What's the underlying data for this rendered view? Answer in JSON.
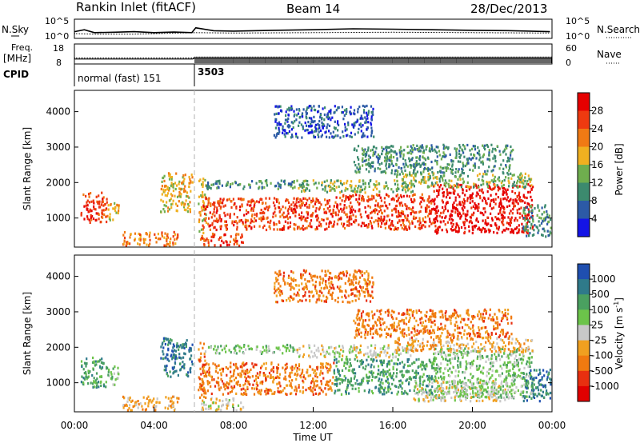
{
  "header": {
    "station": "Rankin Inlet (fitACF)",
    "beam": "Beam 14",
    "date": "28/Dec/2013"
  },
  "colors": {
    "power_scale": [
      "#1414e6",
      "#2c5aa6",
      "#3c8a6e",
      "#6fae4e",
      "#f0b020",
      "#f07a14",
      "#ee3a10",
      "#e60000"
    ],
    "velocity_scale": [
      "#1f4fb0",
      "#2f7a8a",
      "#4aa060",
      "#6cc44a",
      "#c8c8c8",
      "#f0a020",
      "#f07a10",
      "#e83010",
      "#e00000"
    ],
    "axes": "#000000",
    "background": "#ffffff"
  },
  "chart_data": [
    {
      "type": "line",
      "id": "noise_panel",
      "left_labels": [
        "N.Sky"
      ],
      "right_labels": [
        "N.Search"
      ],
      "y_tick_labels": [
        "10^5",
        "10^0"
      ],
      "series": [
        {
          "name": "N.Sky",
          "x": [
            0.0,
            0.5,
            1.0,
            2.0,
            3.0,
            4.0,
            5.0,
            5.9,
            6.1,
            7.0,
            8.0,
            10.0,
            12.0,
            14.0,
            16.0,
            18.0,
            20.0,
            22.0,
            23.9
          ],
          "values": [
            0.35,
            0.45,
            0.3,
            0.32,
            0.35,
            0.3,
            0.33,
            0.3,
            0.55,
            0.4,
            0.38,
            0.42,
            0.45,
            0.5,
            0.48,
            0.45,
            0.42,
            0.4,
            0.35
          ]
        },
        {
          "name": "N.Search",
          "x": [
            0.0,
            1.0,
            3.0,
            6.1,
            8.0,
            12.0,
            16.0,
            20.0,
            23.9
          ],
          "values": [
            0.25,
            0.22,
            0.22,
            0.3,
            0.28,
            0.3,
            0.32,
            0.3,
            0.28
          ]
        }
      ]
    },
    {
      "type": "line",
      "id": "freq_panel",
      "left_labels": [
        "Freq.",
        "[MHz]",
        "CPID"
      ],
      "right_labels": [
        "Nave"
      ],
      "y_left_ticks": [
        "18",
        "8"
      ],
      "y_right_ticks": [
        "60",
        "0"
      ],
      "cpid_annotations": [
        "normal (fast) 151",
        "3503"
      ],
      "series": [
        {
          "name": "Freq.",
          "x": [
            0.0,
            5.95,
            6.05,
            24.0
          ],
          "values": [
            10.5,
            10.5,
            11.0,
            11.0
          ]
        },
        {
          "name": "Nave",
          "x": [
            0.0,
            5.95,
            6.05,
            24.0
          ],
          "values": [
            18,
            18,
            21,
            21
          ]
        }
      ]
    },
    {
      "type": "heatmap",
      "id": "power_panel",
      "ylabel": "Slant Range [km]",
      "y_ticks": [
        1000,
        2000,
        3000,
        4000
      ],
      "ylim": [
        180,
        4600
      ],
      "xlim": [
        0,
        24
      ],
      "colorbar_label": "Power [dB]",
      "colorbar_ticks": [
        4,
        8,
        12,
        16,
        20,
        24,
        28
      ],
      "regions": [
        {
          "t0": 0.3,
          "t1": 1.6,
          "r0": 900,
          "r1": 1750,
          "level": 6
        },
        {
          "t0": 1.6,
          "t1": 2.2,
          "r0": 950,
          "r1": 1500,
          "level": 4
        },
        {
          "t0": 2.4,
          "t1": 5.2,
          "r0": 250,
          "r1": 650,
          "level": 5
        },
        {
          "t0": 4.3,
          "t1": 5.9,
          "r0": 1200,
          "r1": 2300,
          "level": 4
        },
        {
          "t0": 6.2,
          "t1": 6.6,
          "r0": 600,
          "r1": 2200,
          "level": 4
        },
        {
          "t0": 6.3,
          "t1": 8.5,
          "r0": 250,
          "r1": 600,
          "level": 6
        },
        {
          "t0": 6.4,
          "t1": 13.0,
          "r0": 700,
          "r1": 1600,
          "level": 6
        },
        {
          "t0": 13.0,
          "t1": 18.0,
          "r0": 700,
          "r1": 1700,
          "level": 6
        },
        {
          "t0": 18.0,
          "t1": 23.0,
          "r0": 600,
          "r1": 2000,
          "level": 7
        },
        {
          "t0": 6.5,
          "t1": 11.0,
          "r0": 1850,
          "r1": 2100,
          "level": 2
        },
        {
          "t0": 11.0,
          "t1": 17.0,
          "r0": 1750,
          "r1": 2100,
          "level": 3
        },
        {
          "t0": 16.0,
          "t1": 23.0,
          "r0": 1900,
          "r1": 2300,
          "level": 3
        },
        {
          "t0": 14.0,
          "t1": 22.0,
          "r0": 2300,
          "r1": 3100,
          "level": 2
        },
        {
          "t0": 10.0,
          "t1": 15.0,
          "r0": 3300,
          "r1": 4200,
          "level": 1
        },
        {
          "t0": 22.5,
          "t1": 23.9,
          "r0": 500,
          "r1": 1400,
          "level": 2
        }
      ]
    },
    {
      "type": "heatmap",
      "id": "velocity_panel",
      "ylabel": "Slant Range [km]",
      "xlabel": "Time UT",
      "y_ticks": [
        1000,
        2000,
        3000,
        4000
      ],
      "ylim": [
        180,
        4600
      ],
      "xlim": [
        0,
        24
      ],
      "x_tick_labels": [
        "00:00",
        "04:00",
        "08:00",
        "12:00",
        "16:00",
        "20:00",
        "00:00"
      ],
      "colorbar_label": "Velocity [m s",
      "colorbar_label_sup": "-1",
      "colorbar_label_close": "]",
      "colorbar_ticks": [
        "1000",
        "500",
        "100",
        "25",
        "-25",
        "-100",
        "-500",
        "-1000"
      ],
      "regions": [
        {
          "t0": 0.3,
          "t1": 1.6,
          "r0": 900,
          "r1": 1750,
          "level": 2
        },
        {
          "t0": 1.6,
          "t1": 2.2,
          "r0": 950,
          "r1": 1500,
          "level": 3
        },
        {
          "t0": 2.4,
          "t1": 5.2,
          "r0": 250,
          "r1": 650,
          "level": 5
        },
        {
          "t0": 4.3,
          "t1": 5.9,
          "r0": 1200,
          "r1": 2300,
          "level": 1
        },
        {
          "t0": 6.2,
          "t1": 6.6,
          "r0": 600,
          "r1": 2200,
          "level": 6
        },
        {
          "t0": 6.3,
          "t1": 8.5,
          "r0": 250,
          "r1": 600,
          "level": 4
        },
        {
          "t0": 6.4,
          "t1": 13.0,
          "r0": 700,
          "r1": 1600,
          "level": 6
        },
        {
          "t0": 13.0,
          "t1": 18.0,
          "r0": 700,
          "r1": 1700,
          "level": 2
        },
        {
          "t0": 18.0,
          "t1": 23.0,
          "r0": 600,
          "r1": 2000,
          "level": 3
        },
        {
          "t0": 17.0,
          "t1": 22.0,
          "r0": 500,
          "r1": 1100,
          "level": 4
        },
        {
          "t0": 6.5,
          "t1": 11.0,
          "r0": 1850,
          "r1": 2100,
          "level": 3
        },
        {
          "t0": 11.0,
          "t1": 17.0,
          "r0": 1750,
          "r1": 2100,
          "level": 4
        },
        {
          "t0": 16.0,
          "t1": 23.0,
          "r0": 1900,
          "r1": 2300,
          "level": 5
        },
        {
          "t0": 14.0,
          "t1": 22.0,
          "r0": 2300,
          "r1": 3100,
          "level": 6
        },
        {
          "t0": 10.0,
          "t1": 15.0,
          "r0": 3300,
          "r1": 4200,
          "level": 6
        },
        {
          "t0": 22.5,
          "t1": 23.9,
          "r0": 500,
          "r1": 1400,
          "level": 1
        }
      ]
    }
  ]
}
